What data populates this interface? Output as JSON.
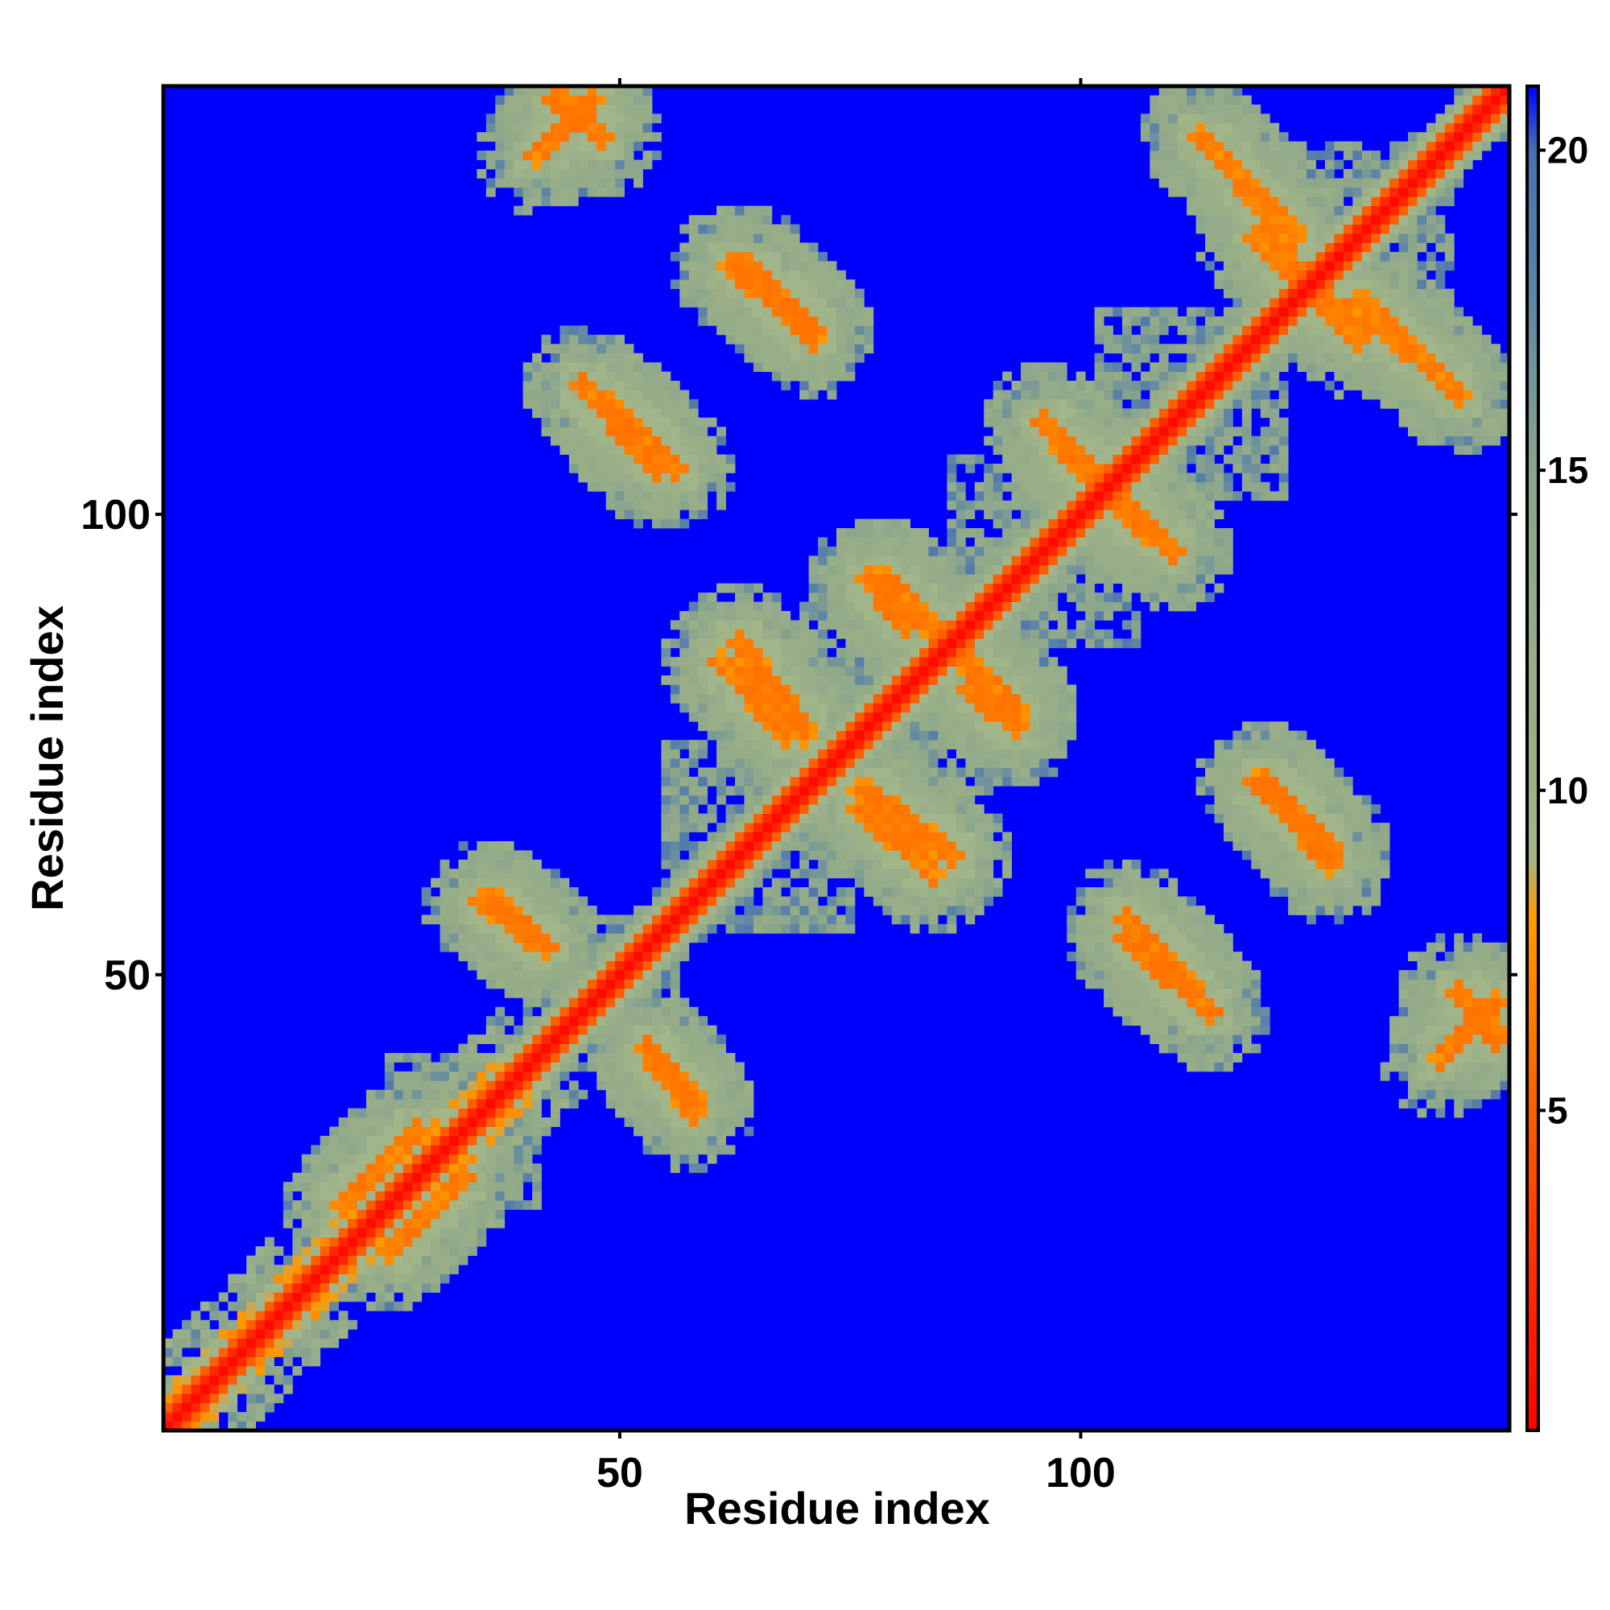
{
  "chart_data": {
    "type": "heatmap",
    "title": "",
    "xlabel": "Residue index",
    "ylabel": "Residue index",
    "xlim": [
      1,
      146
    ],
    "ylim": [
      1,
      146
    ],
    "x_ticks": [
      50,
      100
    ],
    "y_ticks": [
      50,
      100
    ],
    "colorbar": {
      "ticks": [
        5,
        10,
        15,
        20
      ],
      "range": [
        0,
        21
      ],
      "colors": [
        {
          "value": 0,
          "color": "#ff0000"
        },
        {
          "value": 4.5,
          "color": "#ff5500"
        },
        {
          "value": 8,
          "color": "#ff9900"
        },
        {
          "value": 9,
          "color": "#a3b68a"
        },
        {
          "value": 11,
          "color": "#9aaf88"
        },
        {
          "value": 15,
          "color": "#8aa58c"
        },
        {
          "value": 18,
          "color": "#5a82a8"
        },
        {
          "value": 20,
          "color": "#4a6fb0"
        },
        {
          "value": 21,
          "color": "#0000ff"
        }
      ]
    },
    "background_value": 21,
    "features": {
      "diagonal": {
        "from": 1,
        "to": 146,
        "value": 1
      },
      "n_terminal_near_band": {
        "from": 1,
        "to": 38
      },
      "helix_blocks": [
        {
          "center": [
            33,
            33
          ],
          "halfwidth": 8
        },
        {
          "center": [
            48,
            48
          ],
          "halfwidth": 8
        },
        {
          "center": [
            65,
            65
          ],
          "halfwidth": 10
        },
        {
          "center": [
            80,
            80
          ],
          "halfwidth": 10
        },
        {
          "center": [
            96,
            96
          ],
          "halfwidth": 10
        },
        {
          "center": [
            112,
            112
          ],
          "halfwidth": 10
        },
        {
          "center": [
            130,
            130
          ],
          "halfwidth": 10
        }
      ],
      "contact_segments": [
        {
          "from": [
            36,
            58
          ],
          "to": [
            40,
            54
          ],
          "value": 6
        },
        {
          "from": [
            53,
            42
          ],
          "to": [
            58,
            35
          ],
          "value": 6
        },
        {
          "from": [
            61,
            84
          ],
          "to": [
            68,
            76
          ],
          "value": 6
        },
        {
          "from": [
            76,
            70
          ],
          "to": [
            86,
            63
          ],
          "value": 6
        },
        {
          "from": [
            77,
            93
          ],
          "to": [
            81,
            88
          ],
          "value": 6
        },
        {
          "from": [
            87,
            84
          ],
          "to": [
            93,
            78
          ],
          "value": 6
        },
        {
          "from": [
            98,
            107
          ],
          "to": [
            110,
            96
          ],
          "value": 6
        },
        {
          "from": [
            105,
            54
          ],
          "to": [
            114,
            46
          ],
          "value": 6
        },
        {
          "from": [
            119,
            130
          ],
          "to": [
            127,
            122
          ],
          "value": 6
        },
        {
          "from": [
            130,
            123
          ],
          "to": [
            141,
            113
          ],
          "value": 6
        },
        {
          "from": [
            119,
            71
          ],
          "to": [
            127,
            63
          ],
          "value": 6
        },
        {
          "from": [
            48,
            112
          ],
          "to": [
            56,
            105
          ],
          "value": 6
        },
        {
          "from": [
            62,
            127
          ],
          "to": [
            71,
            120
          ],
          "value": 6
        },
        {
          "from": [
            43,
            145
          ],
          "to": [
            48,
            141
          ],
          "value": 6
        },
        {
          "from": [
            139,
            41
          ],
          "to": [
            145,
            47
          ],
          "value": 6
        },
        {
          "from": [
            20,
            25
          ],
          "to": [
            28,
            33
          ],
          "value": 6
        }
      ]
    }
  }
}
